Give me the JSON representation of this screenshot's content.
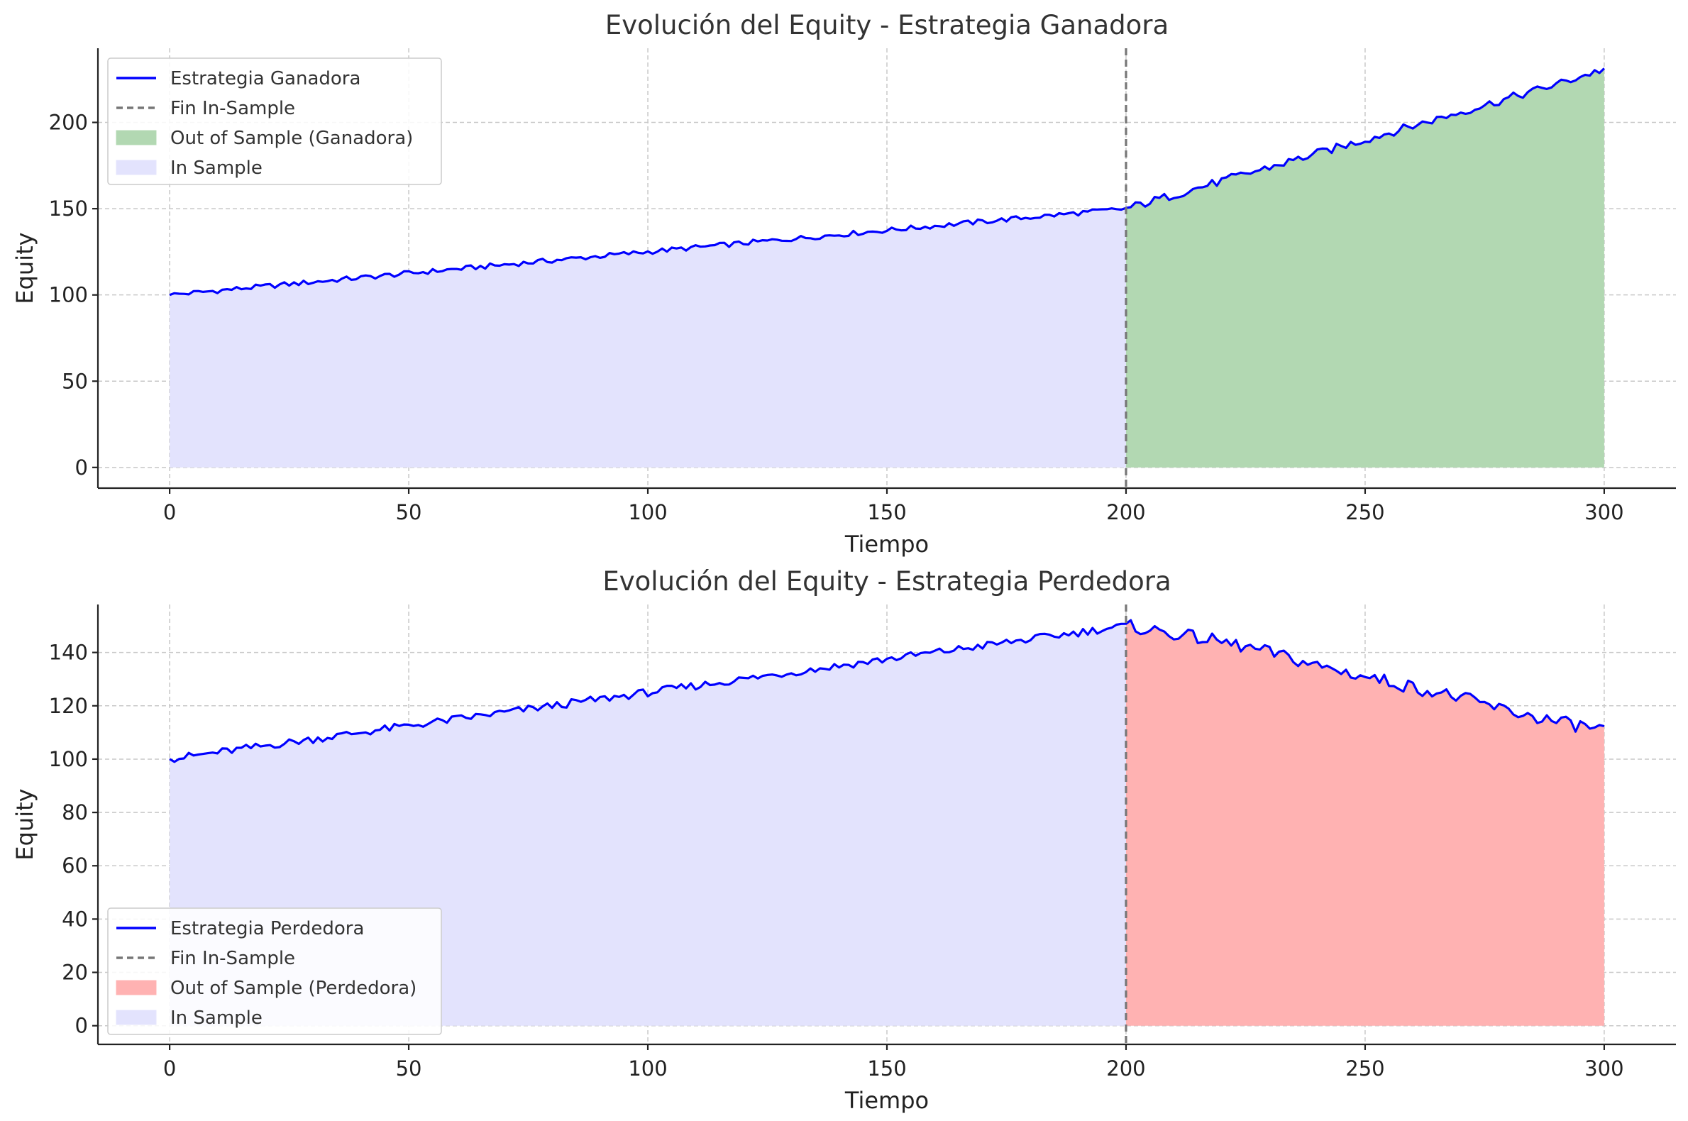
{
  "chart_data": [
    {
      "type": "line",
      "title": "Evolución del Equity - Estrategia Ganadora",
      "xlabel": "Tiempo",
      "ylabel": "Equity",
      "xlim": [
        -15,
        315
      ],
      "ylim": [
        -12,
        243
      ],
      "xticks": [
        0,
        50,
        100,
        150,
        200,
        250,
        300
      ],
      "yticks": [
        0,
        50,
        100,
        150,
        200
      ],
      "grid": true,
      "legend_position": "upper-left",
      "split_x": 200,
      "series": [
        {
          "name": "Estrategia Ganadora",
          "kind": "line",
          "color": "#0000ff",
          "x": [
            0,
            10,
            20,
            30,
            40,
            50,
            60,
            70,
            80,
            90,
            100,
            110,
            120,
            130,
            140,
            150,
            160,
            170,
            180,
            190,
            200,
            210,
            220,
            230,
            240,
            250,
            260,
            270,
            280,
            290,
            300
          ],
          "y": [
            100,
            102.5,
            105,
            107.5,
            110,
            112.5,
            115,
            117.5,
            120,
            122.5,
            125,
            127.5,
            130,
            132.5,
            135,
            137.5,
            140,
            142.5,
            145,
            147.5,
            150,
            158,
            166,
            174,
            182,
            190,
            198,
            206,
            214,
            222,
            231
          ]
        },
        {
          "name": "Fin In-Sample",
          "kind": "vline",
          "color": "#777777",
          "x": 200
        },
        {
          "name": "Out of Sample (Ganadora)",
          "kind": "fill",
          "color": "#b2d8b2",
          "range": [
            200,
            300
          ]
        },
        {
          "name": "In Sample",
          "kind": "fill",
          "color": "#e3e3fd",
          "range": [
            0,
            200
          ]
        }
      ]
    },
    {
      "type": "line",
      "title": "Evolución del Equity - Estrategia Perdedora",
      "xlabel": "Tiempo",
      "ylabel": "Equity",
      "xlim": [
        -15,
        315
      ],
      "ylim": [
        -7,
        158
      ],
      "xticks": [
        0,
        50,
        100,
        150,
        200,
        250,
        300
      ],
      "yticks": [
        0,
        20,
        40,
        60,
        80,
        100,
        120,
        140
      ],
      "grid": true,
      "legend_position": "lower-left",
      "split_x": 200,
      "series": [
        {
          "name": "Estrategia Perdedora",
          "kind": "line",
          "color": "#0000ff",
          "x": [
            0,
            10,
            20,
            30,
            40,
            50,
            60,
            70,
            80,
            90,
            100,
            110,
            120,
            130,
            140,
            150,
            160,
            170,
            180,
            190,
            200,
            210,
            220,
            230,
            240,
            250,
            260,
            270,
            280,
            290,
            300
          ],
          "y": [
            100,
            102.5,
            105,
            107.5,
            110,
            112.5,
            115,
            117.5,
            120,
            122.5,
            125,
            127.5,
            130,
            132.5,
            135,
            137.5,
            140,
            142.5,
            145,
            147.5,
            150,
            147,
            144,
            140,
            135,
            131,
            127,
            123,
            118,
            114,
            111
          ]
        },
        {
          "name": "Fin In-Sample",
          "kind": "vline",
          "color": "#777777",
          "x": 200
        },
        {
          "name": "Out of Sample (Perdedora)",
          "kind": "fill",
          "color": "#ffb2b2",
          "range": [
            200,
            300
          ]
        },
        {
          "name": "In Sample",
          "kind": "fill",
          "color": "#e3e3fd",
          "range": [
            0,
            200
          ]
        }
      ]
    }
  ]
}
